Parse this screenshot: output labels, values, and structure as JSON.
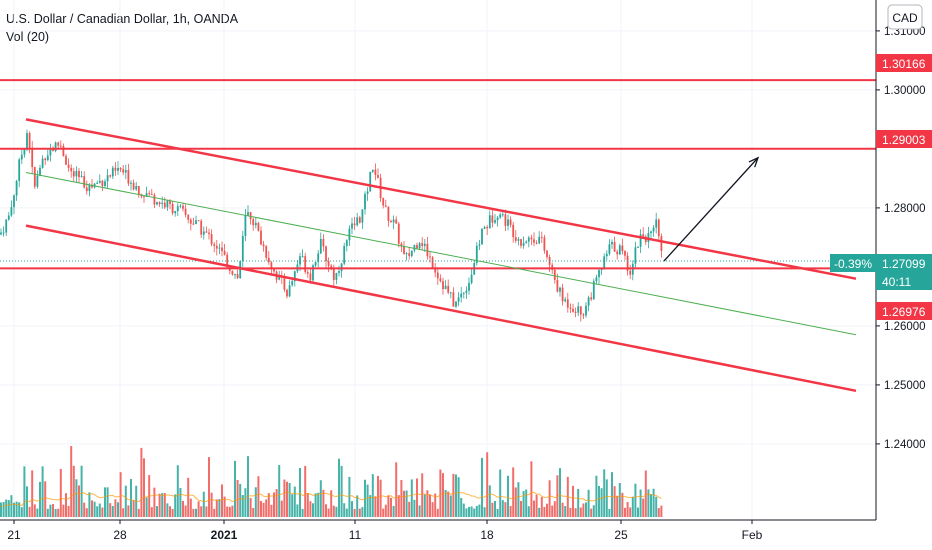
{
  "header": {
    "title": "U.S. Dollar / Canadian Dollar, 1h, OANDA",
    "indicator": "Vol (20)"
  },
  "price_axis": {
    "currency_button": "CAD",
    "ticks": [
      "1.31000",
      "1.30000",
      "1.28000",
      "1.26000",
      "1.25000",
      "1.24000"
    ],
    "tick_values": [
      1.31,
      1.3,
      1.28,
      1.26,
      1.25,
      1.24
    ]
  },
  "time_axis": {
    "labels": [
      "21",
      "28",
      "2021",
      "11",
      "18",
      "25",
      "Feb"
    ]
  },
  "price_tags": {
    "resistance_top": "1.30166",
    "resistance_mid": "1.29003",
    "change": "-0.39%",
    "last_price": "1.27099",
    "countdown": "40:11",
    "support": "1.26976"
  },
  "colors": {
    "up": "#26a69a",
    "down": "#ef5350",
    "level_line": "#f23645",
    "midline": "#4caf50",
    "last_price_tag": "#26a69a",
    "volume_ma": "#ff9800"
  },
  "chart_data": {
    "type": "candlestick",
    "symbol": "USDCAD",
    "timeframe": "1h",
    "horizontal_levels": [
      1.30166,
      1.29003,
      1.26976
    ],
    "last_price": 1.27099,
    "change_percent": -0.39,
    "descending_channel": {
      "upper": [
        [
          "Dec 21",
          1.295
        ],
        [
          "Feb 3",
          1.268
        ]
      ],
      "lower": [
        [
          "Dec 21",
          1.277
        ],
        [
          "Feb 3",
          1.249
        ]
      ],
      "middle": [
        [
          "Dec 21",
          1.286
        ],
        [
          "Feb 3",
          1.2585
        ]
      ]
    },
    "projection_arrow": [
      [
        "Jan 27",
        1.271
      ],
      [
        "Jan 31",
        1.2885
      ]
    ],
    "volume_indicator": "Vol (20)"
  }
}
